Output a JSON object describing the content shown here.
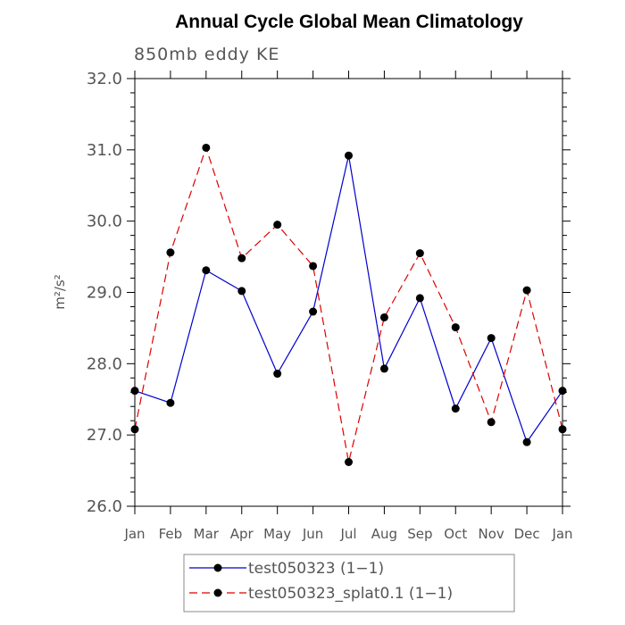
{
  "chart_data": {
    "type": "line",
    "title": "Annual Cycle Global Mean Climatology",
    "subtitle": "850mb eddy KE",
    "ylabel": "m²/s²",
    "xlabel": "",
    "ylim": [
      26.0,
      32.0
    ],
    "yticks": [
      "26.0",
      "27.0",
      "28.0",
      "29.0",
      "30.0",
      "31.0",
      "32.0"
    ],
    "categories": [
      "Jan",
      "Feb",
      "Mar",
      "Apr",
      "May",
      "Jun",
      "Jul",
      "Aug",
      "Sep",
      "Oct",
      "Nov",
      "Dec",
      "Jan"
    ],
    "grid": false,
    "legend_position": "bottom",
    "series": [
      {
        "name": "test050323 (1−1)",
        "color": "#0000cc",
        "dash": "solid",
        "values": [
          27.62,
          27.45,
          29.31,
          29.02,
          27.86,
          28.73,
          30.92,
          27.93,
          28.92,
          27.37,
          28.36,
          26.9,
          27.62
        ]
      },
      {
        "name": "test050323_splat0.1 (1−1)",
        "color": "#dd0000",
        "dash": "dashed",
        "values": [
          27.08,
          29.56,
          31.03,
          29.48,
          29.95,
          29.37,
          26.62,
          28.65,
          29.55,
          28.51,
          27.18,
          29.03,
          27.08
        ]
      }
    ]
  }
}
